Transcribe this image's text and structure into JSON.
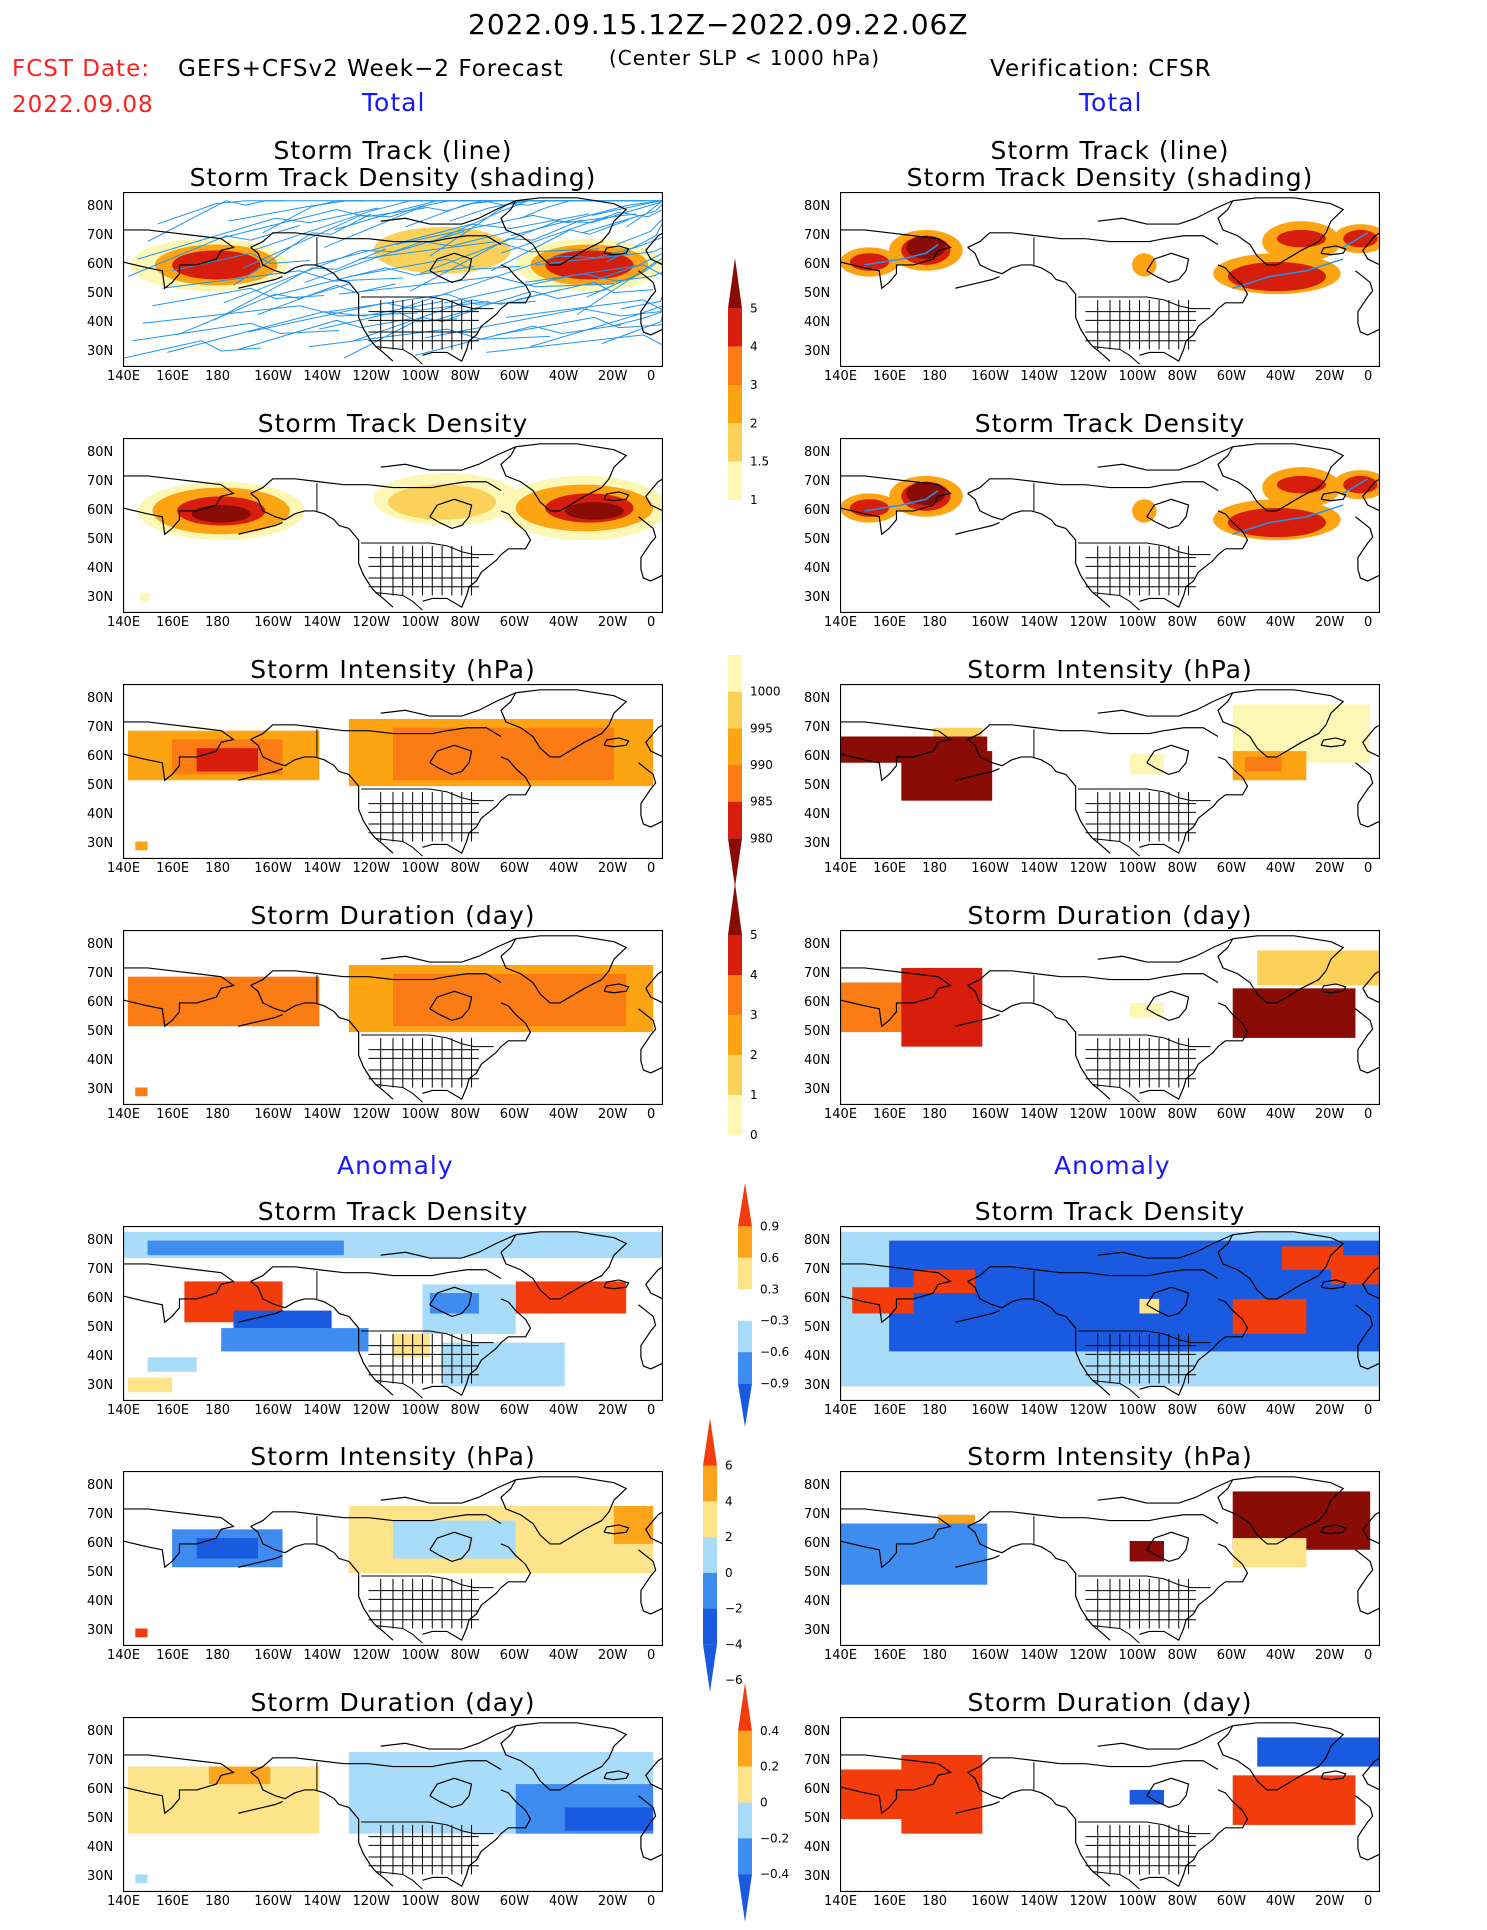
{
  "header": {
    "main_title": "2022.09.15.12Z−2022.09.22.06Z",
    "fcst_label": "FCST Date:",
    "fcst_date": "2022.09.08",
    "forecast_label": "GEFS+CFSv2 Week−2 Forecast",
    "center_note": "(Center SLP < 1000 hPa)",
    "verification_label": "Verification: CFSR"
  },
  "sections": {
    "left_total": "Total",
    "right_total": "Total",
    "left_anomaly": "Anomaly",
    "right_anomaly": "Anomaly"
  },
  "map_axes": {
    "x_ticks": [
      "140E",
      "160E",
      "180",
      "160W",
      "140W",
      "120W",
      "100W",
      "80W",
      "60W",
      "40W",
      "20W",
      "0"
    ],
    "y_ticks": [
      "80N",
      "70N",
      "60N",
      "50N",
      "40N",
      "30N"
    ]
  },
  "panel_titles": {
    "track_line": "Storm Track (line)",
    "track_shading": "Storm Track Density (shading)",
    "density": "Storm Track Density",
    "intensity": "Storm Intensity (hPa)",
    "duration": "Storm Duration (day)"
  },
  "colorbars": {
    "density_total": [
      "5",
      "4",
      "3",
      "2",
      "1.5",
      "1"
    ],
    "intensity_total": [
      "1000",
      "995",
      "990",
      "985",
      "980"
    ],
    "duration_total": [
      "5",
      "4",
      "3",
      "2",
      "1",
      "0"
    ],
    "density_anom": [
      "0.9",
      "0.6",
      "0.3",
      "−0.3",
      "−0.6",
      "−0.9"
    ],
    "intensity_anom": [
      "6",
      "4",
      "2",
      "0",
      "−2",
      "−4",
      "−6"
    ],
    "duration_anom": [
      "0.4",
      "0.2",
      "0",
      "−0.2",
      "−0.4"
    ]
  },
  "colors": {
    "total_scale": [
      "#fdf7b5",
      "#fcd15a",
      "#fca412",
      "#fb7b14",
      "#d71e0c",
      "#8a0c06"
    ],
    "anom_scale": [
      "#1a5ae0",
      "#3f8cf0",
      "#a9dcf8",
      "#ffffff",
      "#fde38a",
      "#fca51c",
      "#f23c0c"
    ],
    "track_line": "#2196f0",
    "header_red": "#ff2020",
    "section_blue": "#1818ff"
  },
  "chart_data": [
    {
      "type": "heatmap",
      "panel": "forecast-track-line-and-density",
      "lon_range": [
        "140E",
        "0"
      ],
      "lat_range": [
        "30N",
        "80N"
      ],
      "maxima": [
        {
          "lon": "175E",
          "lat": "60N",
          "value": 5
        },
        {
          "lon": "35W",
          "lat": "60N",
          "value": 5
        }
      ]
    },
    {
      "type": "heatmap",
      "panel": "verification-track-line-and-density",
      "maxima": [
        {
          "lon": "175E",
          "lat": "65N",
          "value": 5
        },
        {
          "lon": "45W",
          "lat": "70N",
          "value": 5
        },
        {
          "lon": "45W",
          "lat": "55N",
          "value": 5
        }
      ]
    },
    {
      "type": "heatmap",
      "panel": "forecast-intensity",
      "units": "hPa",
      "min_level": 985
    },
    {
      "type": "heatmap",
      "panel": "verification-intensity",
      "units": "hPa",
      "min_level": 980
    },
    {
      "type": "heatmap",
      "panel": "forecast-duration",
      "units": "day",
      "max_level": 4
    },
    {
      "type": "heatmap",
      "panel": "verification-duration",
      "units": "day",
      "max_level": 5
    },
    {
      "type": "heatmap",
      "panel": "forecast-density-anomaly",
      "range": [
        -0.9,
        0.9
      ]
    },
    {
      "type": "heatmap",
      "panel": "verification-density-anomaly",
      "range": [
        -0.9,
        0.9
      ]
    },
    {
      "type": "heatmap",
      "panel": "forecast-intensity-anomaly",
      "units": "hPa",
      "range": [
        -6,
        6
      ]
    },
    {
      "type": "heatmap",
      "panel": "verification-intensity-anomaly",
      "units": "hPa",
      "range": [
        -6,
        6
      ]
    },
    {
      "type": "heatmap",
      "panel": "forecast-duration-anomaly",
      "units": "day",
      "range": [
        -0.4,
        0.4
      ]
    },
    {
      "type": "heatmap",
      "panel": "verification-duration-anomaly",
      "units": "day",
      "range": [
        -0.4,
        0.4
      ]
    }
  ]
}
